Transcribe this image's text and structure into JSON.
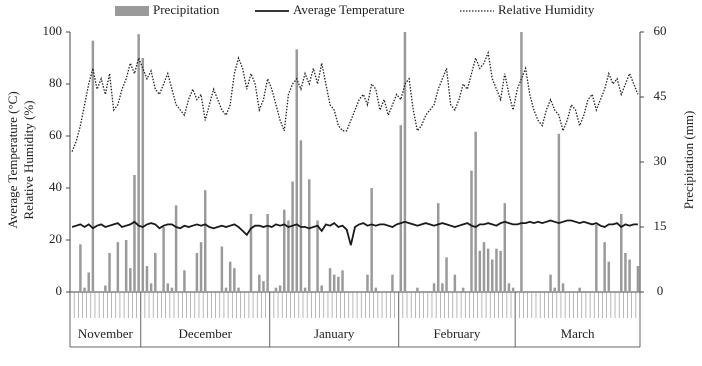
{
  "chart_data": {
    "type": "bar-line",
    "legend": "top",
    "y_label_lines": [
      "Average Temperature (°C)",
      "Relative Humidity (%)"
    ],
    "y2_label": "Precipitation (mm)",
    "ylim": [
      0,
      100
    ],
    "yticks": [
      0,
      20,
      40,
      60,
      80,
      100
    ],
    "y2lim": [
      0,
      60
    ],
    "y2ticks": [
      0,
      15,
      30,
      45,
      60
    ],
    "groups": [
      {
        "label": "November",
        "count": 17
      },
      {
        "label": "December",
        "count": 31
      },
      {
        "label": "January",
        "count": 31
      },
      {
        "label": "February",
        "count": 28
      },
      {
        "label": "March",
        "count": 30
      }
    ],
    "categories": [
      null,
      null,
      null,
      null,
      null,
      null,
      null,
      null,
      null,
      null,
      null,
      null,
      null,
      null,
      null,
      null,
      null,
      null,
      null,
      null,
      null,
      null,
      null,
      null,
      null,
      null,
      null,
      null,
      null,
      null,
      null,
      null,
      null,
      null,
      null,
      null,
      null,
      null,
      null,
      null,
      null,
      null,
      null,
      null,
      null,
      null,
      null,
      null,
      null,
      null,
      null,
      null,
      null,
      null,
      null,
      null,
      null,
      null,
      null,
      null,
      null,
      null,
      null,
      null,
      null,
      null,
      null,
      null,
      null,
      null,
      null,
      null,
      null,
      null,
      null,
      null,
      null,
      null,
      null,
      null,
      null,
      null,
      null,
      null,
      null,
      null,
      null,
      null,
      null,
      null,
      null,
      null,
      null,
      null,
      null,
      null,
      null,
      null,
      null,
      null,
      null,
      null,
      null,
      null,
      null,
      null,
      null,
      null,
      null,
      null,
      null,
      null,
      null,
      null,
      null,
      null,
      null,
      null,
      null,
      null,
      null,
      null,
      null,
      null,
      null,
      null,
      null,
      null,
      null,
      null,
      null,
      null,
      null,
      null,
      null,
      null,
      null
    ],
    "series": [
      {
        "name": "Precipitation",
        "kind": "bar",
        "axis": "y2",
        "color": "#9a9a9a",
        "values": [
          0,
          0,
          11,
          1,
          4.5,
          58,
          0,
          0,
          1.5,
          9,
          0,
          11.5,
          0,
          12,
          5.5,
          27,
          59.5,
          54,
          6,
          2,
          9,
          0,
          15,
          2,
          1,
          20,
          0,
          5,
          0,
          0,
          9,
          11.5,
          23.5,
          0,
          0,
          0,
          10.5,
          1,
          7,
          5.5,
          1,
          0,
          0,
          18,
          0,
          4,
          2.5,
          18,
          0,
          1,
          1.5,
          19,
          16.5,
          25.5,
          56,
          35,
          1,
          26,
          0,
          16.5,
          1.5,
          0,
          5.5,
          4,
          3.5,
          5,
          0,
          0,
          0,
          0,
          0,
          4,
          24,
          1,
          0,
          0,
          0,
          4,
          0,
          38.5,
          60,
          0,
          0,
          1,
          0,
          0,
          0,
          2,
          20.5,
          2,
          8,
          0,
          4,
          0,
          1,
          0,
          28,
          37,
          9.5,
          11.5,
          10,
          7.5,
          10,
          9.5,
          20.5,
          2,
          1,
          0,
          60,
          0,
          0,
          0,
          0,
          0,
          0,
          4,
          1,
          36.5,
          2,
          0,
          0,
          0,
          1,
          0,
          0,
          0,
          15.5,
          0,
          11.5,
          7,
          0,
          0,
          18,
          9,
          7.5,
          0,
          6
        ]
      },
      {
        "name": "Average Temperature",
        "kind": "line",
        "color": "#1a1a1a",
        "values": [
          25,
          25.5,
          26,
          25,
          26,
          24.5,
          25.5,
          26,
          25,
          25.5,
          26,
          26.5,
          25,
          25.5,
          26,
          27,
          25.5,
          25,
          26,
          26.5,
          26,
          24.5,
          25.5,
          26,
          26,
          25,
          24.5,
          25.5,
          25,
          25.5,
          26,
          25.5,
          26,
          25,
          24.5,
          25,
          25.5,
          25,
          25.5,
          26,
          25,
          23.5,
          22,
          24.5,
          25.5,
          25.5,
          25,
          25.5,
          25,
          26,
          25.5,
          26,
          25,
          25.5,
          26,
          25,
          25,
          24.5,
          25,
          25.5,
          23.5,
          26,
          25.5,
          26.5,
          25,
          25.5,
          24,
          18,
          25,
          26,
          26.5,
          25.5,
          26,
          25.5,
          26,
          26,
          25.5,
          25,
          26,
          26.5,
          27,
          26.5,
          26,
          25.5,
          26,
          26.5,
          26,
          25.5,
          26,
          26.5,
          26,
          25.5,
          25,
          25.5,
          26,
          26.5,
          25.5,
          25,
          26,
          26,
          26.5,
          26,
          25.5,
          26.5,
          27,
          26.5,
          26,
          26,
          26.5,
          26.5,
          27,
          26.5,
          27,
          26.5,
          27,
          27.5,
          27,
          26.5,
          27,
          27.5,
          27.5,
          27,
          26.5,
          27,
          26.5,
          26,
          26.5,
          25.5,
          25,
          26,
          26,
          26.5,
          25,
          26,
          25.5,
          26,
          26
        ]
      },
      {
        "name": "Relative Humidity",
        "kind": "dotted-line",
        "color": "#222222",
        "values": [
          54,
          58,
          64,
          72,
          80,
          86,
          78,
          82,
          76,
          84,
          70,
          72,
          78,
          82,
          88,
          84,
          90,
          86,
          82,
          85,
          78,
          76,
          80,
          84,
          78,
          72,
          70,
          68,
          74,
          78,
          74,
          76,
          66,
          72,
          78,
          74,
          70,
          68,
          72,
          84,
          90,
          86,
          78,
          84,
          80,
          70,
          74,
          82,
          78,
          72,
          66,
          62,
          76,
          80,
          82,
          78,
          84,
          80,
          86,
          80,
          88,
          80,
          72,
          70,
          64,
          62,
          62,
          66,
          70,
          74,
          76,
          72,
          80,
          78,
          70,
          74,
          68,
          72,
          76,
          74,
          80,
          82,
          70,
          62,
          64,
          68,
          70,
          72,
          78,
          82,
          86,
          72,
          70,
          74,
          80,
          78,
          84,
          90,
          86,
          88,
          92,
          82,
          78,
          74,
          84,
          76,
          70,
          78,
          82,
          86,
          76,
          70,
          66,
          64,
          70,
          74,
          70,
          68,
          62,
          66,
          72,
          70,
          64,
          68,
          74,
          76,
          70,
          74,
          78,
          84,
          80,
          82,
          76,
          80,
          84,
          80,
          76
        ]
      }
    ]
  }
}
